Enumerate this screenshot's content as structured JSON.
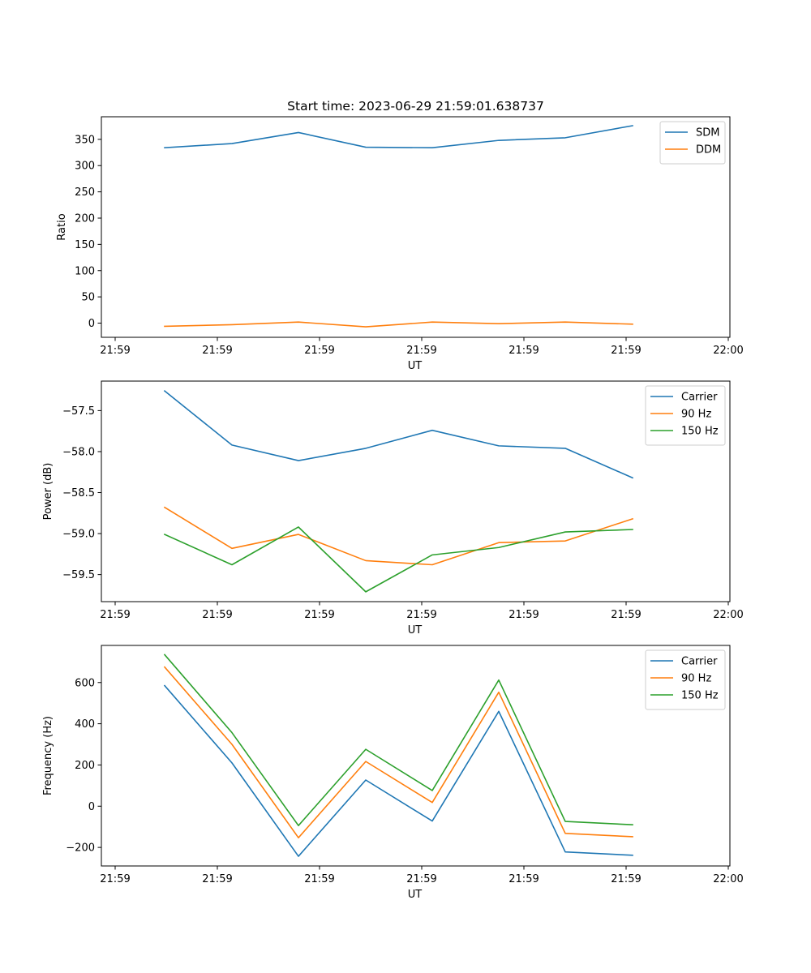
{
  "chart_data": [
    {
      "type": "line",
      "title": "Start time: 2023-06-29 21:59:01.638737",
      "xlabel": "UT",
      "ylabel": "Ratio",
      "x_tick_labels": [
        "21:59",
        "21:59",
        "21:59",
        "21:59",
        "21:59",
        "21:59",
        "22:00"
      ],
      "y_ticks": [
        0,
        50,
        100,
        150,
        200,
        250,
        300,
        350
      ],
      "ylim": [
        -27,
        393
      ],
      "legend": "top-right",
      "series": [
        {
          "name": "SDM",
          "color": "#1f77b4",
          "values": [
            334,
            342,
            363,
            335,
            334,
            348,
            353,
            376
          ]
        },
        {
          "name": "DDM",
          "color": "#ff7f0e",
          "values": [
            -6,
            -3,
            2,
            -7,
            2,
            -1,
            2,
            -2
          ]
        }
      ]
    },
    {
      "type": "line",
      "title": "",
      "xlabel": "UT",
      "ylabel": "Power (dB)",
      "x_tick_labels": [
        "21:59",
        "21:59",
        "21:59",
        "21:59",
        "21:59",
        "21:59",
        "22:00"
      ],
      "y_tick_labels": [
        "−57.5",
        "−58.0",
        "−58.5",
        "−59.0",
        "−59.5"
      ],
      "y_ticks": [
        -57.5,
        -58.0,
        -58.5,
        -59.0,
        -59.5
      ],
      "ylim": [
        -59.83,
        -57.14
      ],
      "legend": "top-right",
      "series": [
        {
          "name": "Carrier",
          "color": "#1f77b4",
          "values": [
            -57.26,
            -57.92,
            -58.11,
            -57.96,
            -57.74,
            -57.93,
            -57.96,
            -58.32
          ]
        },
        {
          "name": "90 Hz",
          "color": "#ff7f0e",
          "values": [
            -58.68,
            -59.18,
            -59.01,
            -59.33,
            -59.38,
            -59.11,
            -59.09,
            -58.82
          ]
        },
        {
          "name": "150 Hz",
          "color": "#2ca02c",
          "values": [
            -59.01,
            -59.38,
            -58.92,
            -59.71,
            -59.26,
            -59.17,
            -58.98,
            -58.95
          ]
        }
      ]
    },
    {
      "type": "line",
      "title": "",
      "xlabel": "UT",
      "ylabel": "Frequency (Hz)",
      "x_tick_labels": [
        "21:59",
        "21:59",
        "21:59",
        "21:59",
        "21:59",
        "21:59",
        "22:00"
      ],
      "y_tick_labels": [
        "600",
        "400",
        "200",
        "0",
        "−200"
      ],
      "y_ticks": [
        600,
        400,
        200,
        0,
        -200
      ],
      "ylim": [
        -290,
        780
      ],
      "legend": "top-right",
      "series": [
        {
          "name": "Carrier",
          "color": "#1f77b4",
          "values": [
            585,
            210,
            -243,
            127,
            -72,
            460,
            -222,
            -238
          ]
        },
        {
          "name": "90 Hz",
          "color": "#ff7f0e",
          "values": [
            675,
            300,
            -153,
            217,
            18,
            553,
            -132,
            -148
          ]
        },
        {
          "name": "150 Hz",
          "color": "#2ca02c",
          "values": [
            735,
            357,
            -94,
            276,
            76,
            612,
            -74,
            -90
          ]
        }
      ]
    }
  ]
}
